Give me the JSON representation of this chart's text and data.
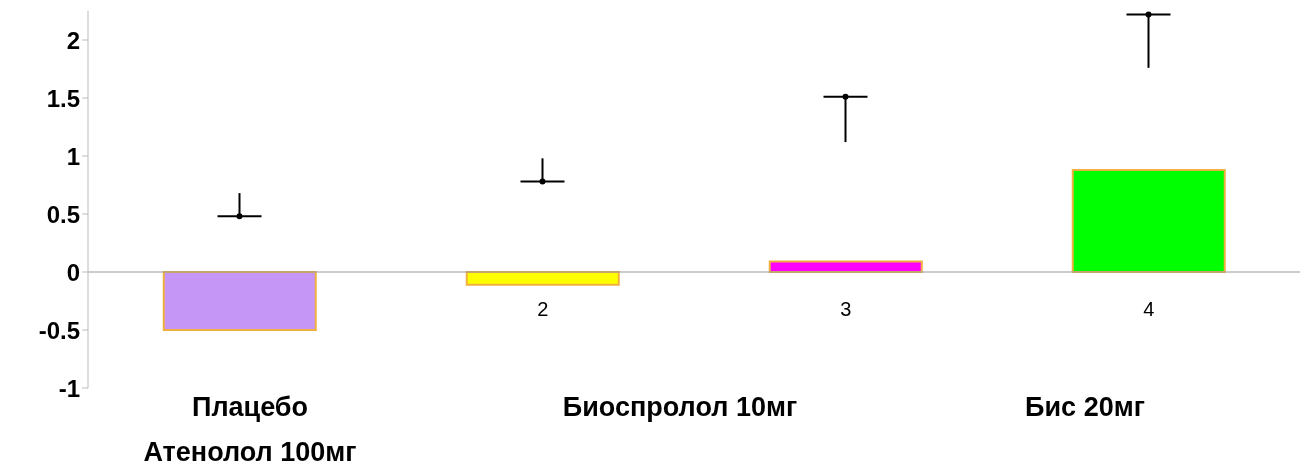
{
  "chart_data": {
    "type": "bar",
    "categories": [
      null,
      "2",
      "3",
      "4"
    ],
    "series": [
      {
        "values": [
          -0.5,
          -0.11,
          0.09,
          0.88
        ],
        "colors": [
          "#c596f5",
          "#ffff00",
          "#ff00ff",
          "#00ff00"
        ]
      },
      {
        "type": "scatter",
        "values": [
          0.48,
          0.78,
          1.51,
          2.22
        ],
        "errors": [
          [
            0.48,
            0.68
          ],
          [
            0.78,
            0.98
          ],
          [
            1.12,
            1.51
          ],
          [
            1.76,
            2.22
          ]
        ],
        "color": "#000000",
        "marker": "circle"
      }
    ],
    "ylim": [
      -1,
      2.25
    ],
    "yticks": [
      -1,
      -0.5,
      0,
      0.5,
      1,
      1.5,
      2
    ],
    "annotations": [
      "Плацебо",
      "Атенолол 100мг",
      "Биоспролол 10мг",
      "Бис 20мг"
    ]
  }
}
